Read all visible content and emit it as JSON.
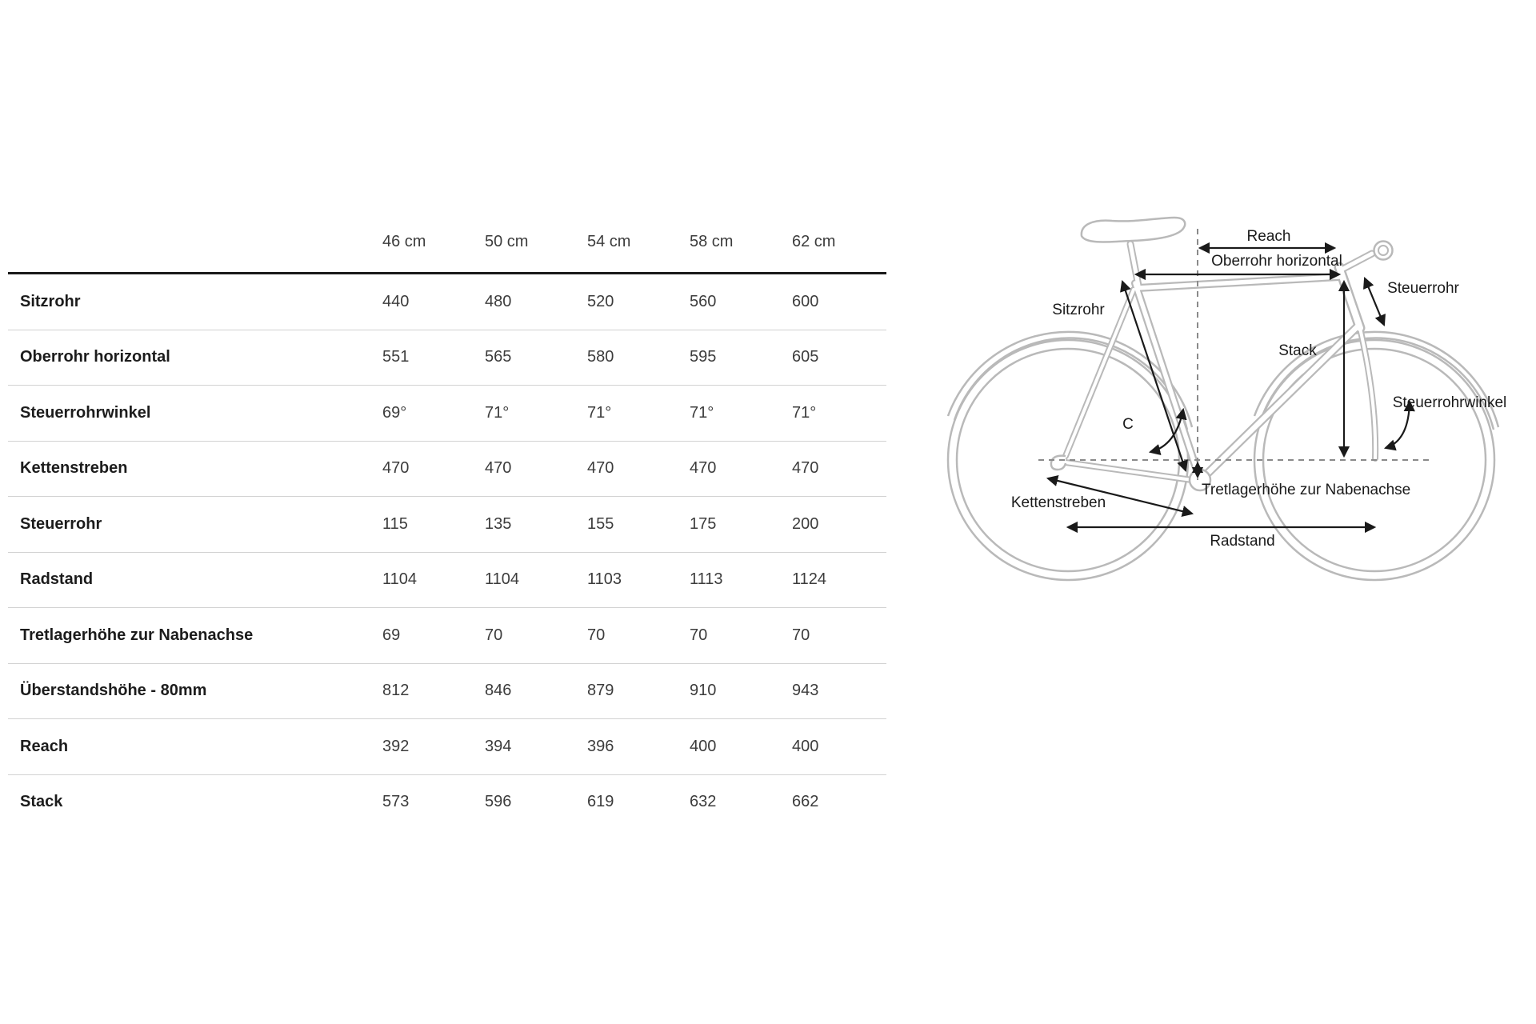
{
  "page": {
    "background": "#ffffff"
  },
  "table": {
    "size_headers": [
      "46 cm",
      "50 cm",
      "54 cm",
      "58 cm",
      "62 cm"
    ],
    "rows": [
      {
        "label": "Sitzrohr",
        "values": [
          "440",
          "480",
          "520",
          "560",
          "600"
        ]
      },
      {
        "label": "Oberrohr horizontal",
        "values": [
          "551",
          "565",
          "580",
          "595",
          "605"
        ]
      },
      {
        "label": "Steuerrohrwinkel",
        "values": [
          "69°",
          "71°",
          "71°",
          "71°",
          "71°"
        ]
      },
      {
        "label": "Kettenstreben",
        "values": [
          "470",
          "470",
          "470",
          "470",
          "470"
        ]
      },
      {
        "label": "Steuerrohr",
        "values": [
          "115",
          "135",
          "155",
          "175",
          "200"
        ]
      },
      {
        "label": "Radstand",
        "values": [
          "1104",
          "1104",
          "1103",
          "1113",
          "1124"
        ]
      },
      {
        "label": "Tretlagerhöhe zur Nabenachse",
        "values": [
          "69",
          "70",
          "70",
          "70",
          "70"
        ]
      },
      {
        "label": "Überstandshöhe - 80mm",
        "values": [
          "812",
          "846",
          "879",
          "910",
          "943"
        ]
      },
      {
        "label": "Reach",
        "values": [
          "392",
          "394",
          "396",
          "400",
          "400"
        ]
      },
      {
        "label": "Stack",
        "values": [
          "573",
          "596",
          "619",
          "632",
          "662"
        ]
      }
    ]
  },
  "diagram": {
    "labels": {
      "reach": "Reach",
      "oberrohr_horizontal": "Oberrohr horizontal",
      "steuerrohr": "Steuerrohr",
      "sitzrohr": "Sitzrohr",
      "stack": "Stack",
      "steuerrohrwinkel": "Steuerrohrwinkel",
      "seat_angle": "C",
      "tretlagerhoehe": "Tretlagerhöhe zur Nabenachse",
      "kettenstreben": "Kettenstreben",
      "radstand": "Radstand"
    }
  },
  "colors": {
    "bike_outline": "#b9b9b9",
    "annotation": "#1a1a1a",
    "dashed_line": "#8a8a8a",
    "table_header_line": "#1a1a1a",
    "table_row_line": "#d2d2d2"
  },
  "chart_data": {
    "type": "table",
    "title": "Bike frame geometry (mm / degrees)",
    "categories": [
      "46 cm",
      "50 cm",
      "54 cm",
      "58 cm",
      "62 cm"
    ],
    "series": [
      {
        "name": "Sitzrohr",
        "values": [
          440,
          480,
          520,
          560,
          600
        ]
      },
      {
        "name": "Oberrohr horizontal",
        "values": [
          551,
          565,
          580,
          595,
          605
        ]
      },
      {
        "name": "Steuerrohrwinkel",
        "values": [
          "69°",
          "71°",
          "71°",
          "71°",
          "71°"
        ]
      },
      {
        "name": "Kettenstreben",
        "values": [
          470,
          470,
          470,
          470,
          470
        ]
      },
      {
        "name": "Steuerrohr",
        "values": [
          115,
          135,
          155,
          175,
          200
        ]
      },
      {
        "name": "Radstand",
        "values": [
          1104,
          1104,
          1103,
          1113,
          1124
        ]
      },
      {
        "name": "Tretlagerhöhe zur Nabenachse",
        "values": [
          69,
          70,
          70,
          70,
          70
        ]
      },
      {
        "name": "Überstandshöhe - 80mm",
        "values": [
          812,
          846,
          879,
          910,
          943
        ]
      },
      {
        "name": "Reach",
        "values": [
          392,
          394,
          396,
          400,
          400
        ]
      },
      {
        "name": "Stack",
        "values": [
          573,
          596,
          619,
          632,
          662
        ]
      }
    ]
  }
}
